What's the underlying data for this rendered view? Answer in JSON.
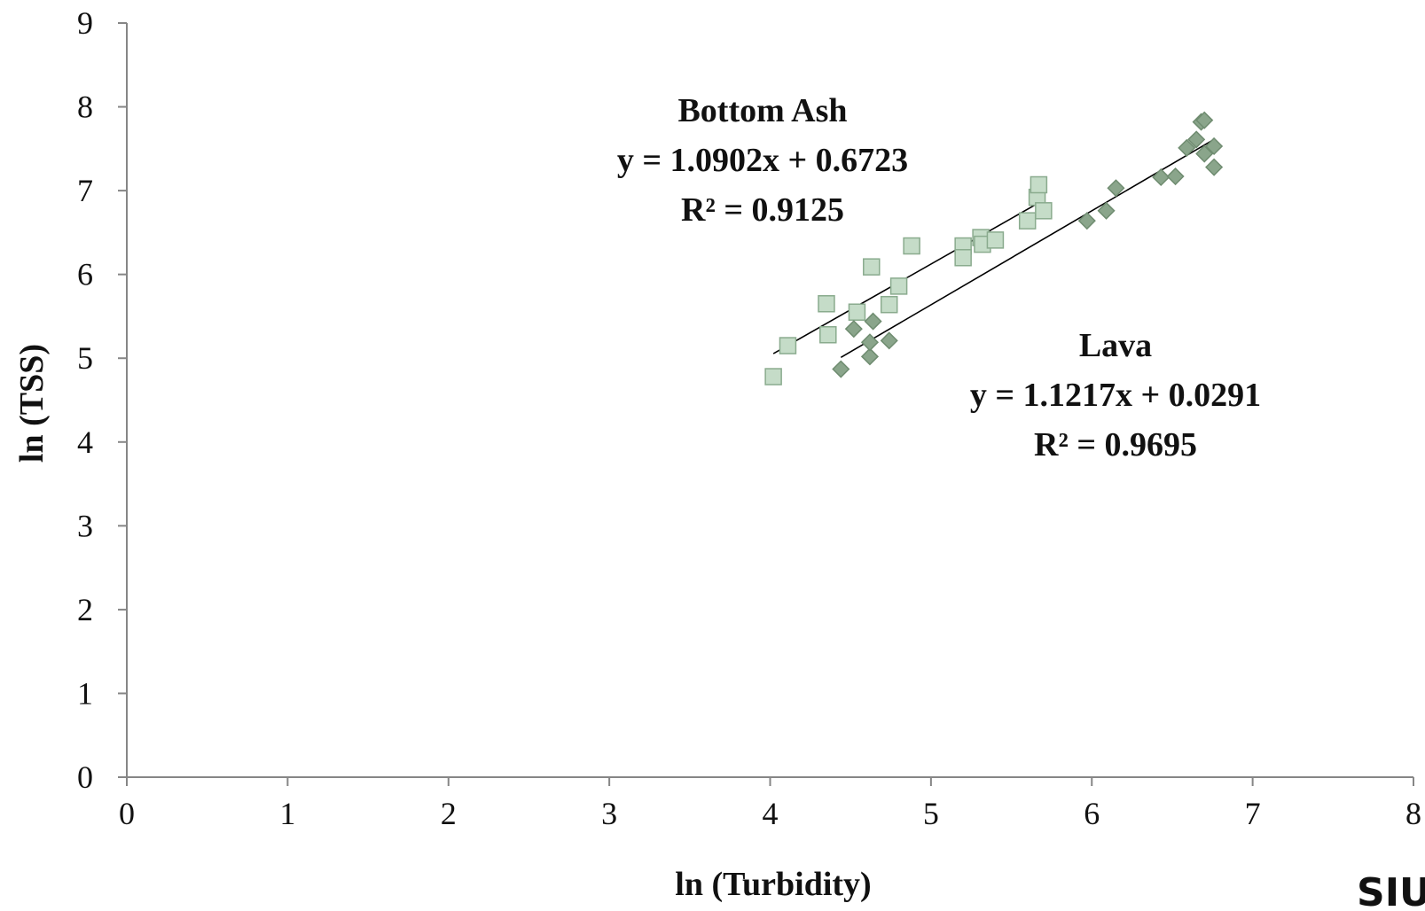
{
  "chart_data": {
    "type": "scatter",
    "xlabel": "ln (Turbidity)",
    "ylabel": "ln (TSS)",
    "xlim": [
      0,
      8
    ],
    "ylim": [
      0,
      9
    ],
    "x_ticks": [
      0,
      1,
      2,
      3,
      4,
      5,
      6,
      7,
      8
    ],
    "y_ticks": [
      0,
      1,
      2,
      3,
      4,
      5,
      6,
      7,
      8,
      9
    ],
    "grid": false,
    "series": [
      {
        "name": "Bottom Ash",
        "marker": "square",
        "color": "#c5dcc8",
        "stroke": "#8aab8e",
        "points": [
          [
            4.02,
            4.78
          ],
          [
            4.11,
            5.15
          ],
          [
            4.35,
            5.65
          ],
          [
            4.36,
            5.28
          ],
          [
            4.54,
            5.55
          ],
          [
            4.63,
            6.09
          ],
          [
            4.74,
            5.64
          ],
          [
            4.8,
            5.86
          ],
          [
            4.88,
            6.34
          ],
          [
            5.2,
            6.34
          ],
          [
            5.2,
            6.2
          ],
          [
            5.31,
            6.44
          ],
          [
            5.32,
            6.36
          ],
          [
            5.4,
            6.41
          ],
          [
            5.6,
            6.64
          ],
          [
            5.66,
            6.92
          ],
          [
            5.67,
            7.07
          ],
          [
            5.7,
            6.76
          ]
        ],
        "trendline": {
          "slope": 1.0902,
          "intercept": 0.6723,
          "x_range": [
            4.02,
            5.7
          ]
        },
        "annotation": [
          "Bottom Ash",
          "y = 1.0902x + 0.6723",
          "R² = 0.9125"
        ]
      },
      {
        "name": "Lava",
        "marker": "diamond",
        "color": "#8aa58b",
        "stroke": "#6f8c70",
        "points": [
          [
            4.44,
            4.87
          ],
          [
            4.52,
            5.35
          ],
          [
            4.62,
            5.02
          ],
          [
            4.62,
            5.19
          ],
          [
            4.64,
            5.44
          ],
          [
            4.74,
            5.21
          ],
          [
            5.97,
            6.64
          ],
          [
            6.09,
            6.76
          ],
          [
            6.15,
            7.03
          ],
          [
            6.43,
            7.16
          ],
          [
            6.52,
            7.17
          ],
          [
            6.59,
            7.51
          ],
          [
            6.65,
            7.61
          ],
          [
            6.68,
            7.82
          ],
          [
            6.7,
            7.84
          ],
          [
            6.7,
            7.44
          ],
          [
            6.76,
            7.53
          ],
          [
            6.76,
            7.28
          ]
        ],
        "trendline": {
          "slope": 1.1217,
          "intercept": 0.0291,
          "x_range": [
            4.44,
            6.76
          ]
        },
        "annotation": [
          "Lava",
          "y = 1.1217x + 0.0291",
          "R² = 0.9695"
        ]
      }
    ]
  },
  "logo": {
    "text": "SIU"
  }
}
